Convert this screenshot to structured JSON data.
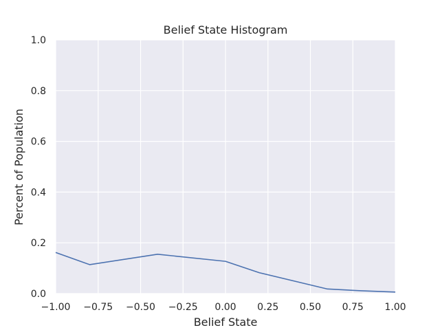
{
  "chart_data": {
    "type": "line",
    "title": "Belief State Histogram",
    "xlabel": "Belief State",
    "ylabel": "Percent of Population",
    "xlim": [
      -1.0,
      1.0
    ],
    "ylim": [
      0.0,
      1.0
    ],
    "xticks": [
      -1.0,
      -0.75,
      -0.5,
      -0.25,
      0.0,
      0.25,
      0.5,
      0.75,
      1.0
    ],
    "xtick_labels": [
      "−1.00",
      "−0.75",
      "−0.50",
      "−0.25",
      "0.00",
      "0.25",
      "0.50",
      "0.75",
      "1.00"
    ],
    "yticks": [
      0.0,
      0.2,
      0.4,
      0.6,
      0.8,
      1.0
    ],
    "ytick_labels": [
      "0.0",
      "0.2",
      "0.4",
      "0.6",
      "0.8",
      "1.0"
    ],
    "grid": true,
    "background_color": "#eaeaf2",
    "grid_color": "#ffffff",
    "series": [
      {
        "color": "#4c72b0",
        "x": [
          -1.0,
          -0.8,
          -0.4,
          0.0,
          0.2,
          0.6,
          0.8,
          1.0
        ],
        "y": [
          0.162,
          0.114,
          0.155,
          0.127,
          0.082,
          0.018,
          0.011,
          0.006
        ]
      }
    ]
  }
}
